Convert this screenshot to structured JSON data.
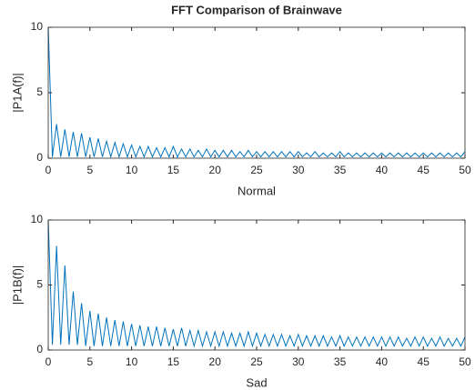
{
  "chart_data": [
    {
      "type": "line",
      "title": "FFT Comparison of Brainwave",
      "xlabel": "Normal",
      "ylabel": "|P1A(f)|",
      "color": "#0072bd",
      "xlim": [
        0,
        50
      ],
      "ylim": [
        0,
        10
      ],
      "xticks": [
        0,
        5,
        10,
        15,
        20,
        25,
        30,
        35,
        40,
        45,
        50
      ],
      "yticks": [
        0,
        5,
        10
      ],
      "x": [
        0,
        0.5,
        1,
        1.5,
        2,
        2.5,
        3,
        3.5,
        4,
        4.5,
        5,
        5.5,
        6,
        6.5,
        7,
        7.5,
        8,
        8.5,
        9,
        9.5,
        10,
        10.5,
        11,
        11.5,
        12,
        12.5,
        13,
        13.5,
        14,
        14.5,
        15,
        15.5,
        16,
        16.5,
        17,
        17.5,
        18,
        18.5,
        19,
        19.5,
        20,
        20.5,
        21,
        21.5,
        22,
        22.5,
        23,
        23.5,
        24,
        24.5,
        25,
        25.5,
        26,
        26.5,
        27,
        27.5,
        28,
        28.5,
        29,
        29.5,
        30,
        30.5,
        31,
        31.5,
        32,
        32.5,
        33,
        33.5,
        34,
        34.5,
        35,
        35.5,
        36,
        36.5,
        37,
        37.5,
        38,
        38.5,
        39,
        39.5,
        40,
        40.5,
        41,
        41.5,
        42,
        42.5,
        43,
        43.5,
        44,
        44.5,
        45,
        45.5,
        46,
        46.5,
        47,
        47.5,
        48,
        48.5,
        49,
        49.5,
        50
      ],
      "values": [
        10,
        0.1,
        2.6,
        0.1,
        2.2,
        0.1,
        2.0,
        0.1,
        1.9,
        0.1,
        1.6,
        0.1,
        1.5,
        0.1,
        1.3,
        0.1,
        1.2,
        0.1,
        1.1,
        0.1,
        1.0,
        0.1,
        0.9,
        0.1,
        0.9,
        0.1,
        0.8,
        0.1,
        0.8,
        0.1,
        0.9,
        0.1,
        0.7,
        0.1,
        0.7,
        0.1,
        0.6,
        0.1,
        0.7,
        0.1,
        0.6,
        0.1,
        0.6,
        0.1,
        0.6,
        0.1,
        0.5,
        0.1,
        0.6,
        0.1,
        0.5,
        0.1,
        0.5,
        0.1,
        0.5,
        0.1,
        0.5,
        0.1,
        0.5,
        0.1,
        0.5,
        0.1,
        0.4,
        0.1,
        0.5,
        0.1,
        0.4,
        0.1,
        0.4,
        0.1,
        0.5,
        0.1,
        0.4,
        0.1,
        0.4,
        0.1,
        0.4,
        0.1,
        0.4,
        0.1,
        0.4,
        0.1,
        0.4,
        0.1,
        0.4,
        0.1,
        0.4,
        0.1,
        0.4,
        0.1,
        0.4,
        0.1,
        0.4,
        0.1,
        0.4,
        0.1,
        0.4,
        0.1,
        0.4,
        0.1,
        0.5
      ]
    },
    {
      "type": "line",
      "xlabel": "Sad",
      "ylabel": "|P1B(f)|",
      "color": "#0072bd",
      "xlim": [
        0,
        50
      ],
      "ylim": [
        0,
        10
      ],
      "xticks": [
        0,
        5,
        10,
        15,
        20,
        25,
        30,
        35,
        40,
        45,
        50
      ],
      "yticks": [
        0,
        5,
        10
      ],
      "x": [
        0,
        0.5,
        1,
        1.5,
        2,
        2.5,
        3,
        3.5,
        4,
        4.5,
        5,
        5.5,
        6,
        6.5,
        7,
        7.5,
        8,
        8.5,
        9,
        9.5,
        10,
        10.5,
        11,
        11.5,
        12,
        12.5,
        13,
        13.5,
        14,
        14.5,
        15,
        15.5,
        16,
        16.5,
        17,
        17.5,
        18,
        18.5,
        19,
        19.5,
        20,
        20.5,
        21,
        21.5,
        22,
        22.5,
        23,
        23.5,
        24,
        24.5,
        25,
        25.5,
        26,
        26.5,
        27,
        27.5,
        28,
        28.5,
        29,
        29.5,
        30,
        30.5,
        31,
        31.5,
        32,
        32.5,
        33,
        33.5,
        34,
        34.5,
        35,
        35.5,
        36,
        36.5,
        37,
        37.5,
        38,
        38.5,
        39,
        39.5,
        40,
        40.5,
        41,
        41.5,
        42,
        42.5,
        43,
        43.5,
        44,
        44.5,
        45,
        45.5,
        46,
        46.5,
        47,
        47.5,
        48,
        48.5,
        49,
        49.5,
        50
      ],
      "values": [
        10,
        0.4,
        8.0,
        0.4,
        6.5,
        0.4,
        4.5,
        0.4,
        3.6,
        0.3,
        3.0,
        0.3,
        2.8,
        0.3,
        2.5,
        0.3,
        2.3,
        0.3,
        2.2,
        0.3,
        2.0,
        0.3,
        1.9,
        0.3,
        1.8,
        0.3,
        1.8,
        0.3,
        1.7,
        0.3,
        1.6,
        0.3,
        1.7,
        0.3,
        1.5,
        0.3,
        1.5,
        0.3,
        1.4,
        0.3,
        1.4,
        0.3,
        1.4,
        0.3,
        1.3,
        0.3,
        1.3,
        0.3,
        1.4,
        0.3,
        1.3,
        0.3,
        1.2,
        0.3,
        1.2,
        0.3,
        1.2,
        0.3,
        1.1,
        0.3,
        1.2,
        0.3,
        1.1,
        0.3,
        1.1,
        0.3,
        1.1,
        0.3,
        1.0,
        0.3,
        1.1,
        0.3,
        1.0,
        0.3,
        1.0,
        0.3,
        1.0,
        0.3,
        1.0,
        0.3,
        1.0,
        0.3,
        1.0,
        0.3,
        1.0,
        0.3,
        0.9,
        0.3,
        1.0,
        0.3,
        1.0,
        0.3,
        0.9,
        0.3,
        1.0,
        0.3,
        0.9,
        0.3,
        0.9,
        0.3,
        1.0
      ]
    }
  ]
}
